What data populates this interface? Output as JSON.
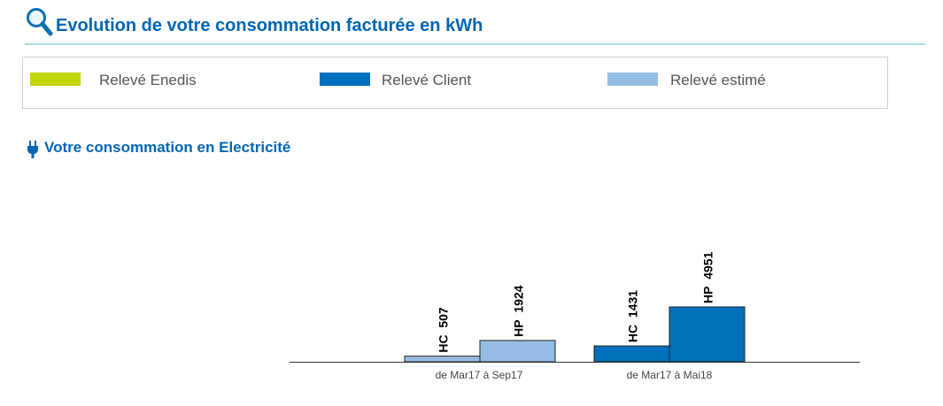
{
  "header": {
    "title": "Evolution de votre consommation facturée en kWh",
    "icon": "magnifier-icon"
  },
  "legend": {
    "items": [
      {
        "label": "Relevé Enedis",
        "color": "#c3d600"
      },
      {
        "label": "Relevé Client",
        "color": "#0070bd"
      },
      {
        "label": "Relevé estimé",
        "color": "#95bde4"
      }
    ]
  },
  "section": {
    "title": "Votre consommation en Electricité",
    "icon": "plug-icon"
  },
  "chart_data": {
    "type": "bar",
    "categories": [
      "de Mar17 à Sep17",
      "de Mar17 à Mai18"
    ],
    "bars": [
      {
        "category": 0,
        "label": "HC",
        "value": 507,
        "reading": "Relevé estimé"
      },
      {
        "category": 0,
        "label": "HP",
        "value": 1924,
        "reading": "Relevé estimé"
      },
      {
        "category": 1,
        "label": "HC",
        "value": 1431,
        "reading": "Relevé Client"
      },
      {
        "category": 1,
        "label": "HP",
        "value": 4951,
        "reading": "Relevé Client"
      }
    ],
    "ylim": [
      0,
      4951
    ],
    "grid": false
  }
}
